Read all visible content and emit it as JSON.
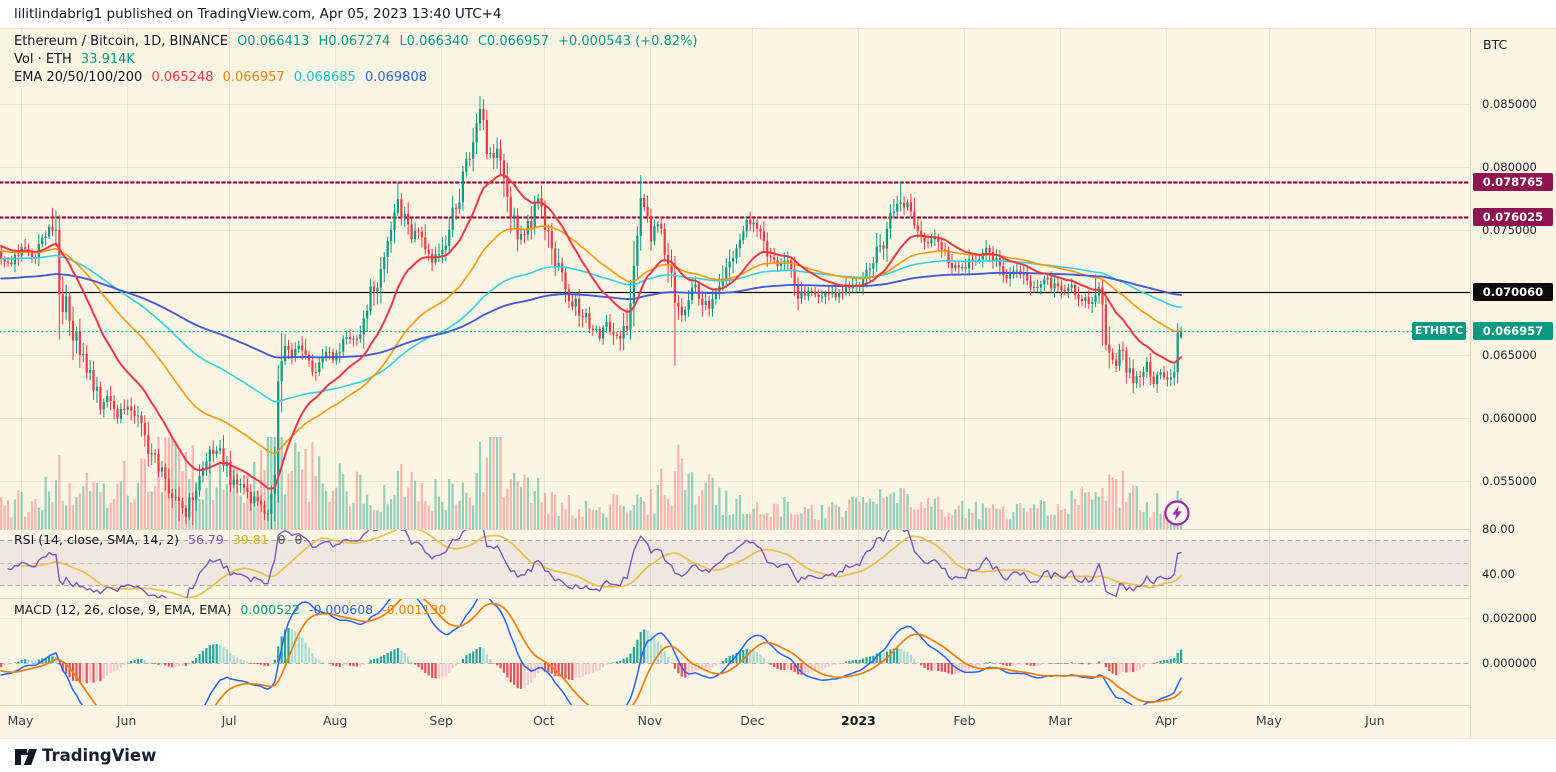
{
  "header": {
    "publish_info": "lilitlindabrig1 published on TradingView.com, Apr 05, 2023 13:40 UTC+4"
  },
  "legend": {
    "line1": {
      "symbol": "Ethereum / Bitcoin, 1D, BINANCE",
      "o": "O0.066413",
      "h": "H0.067274",
      "l": "L0.066340",
      "c": "C0.066957",
      "change": "+0.000543 (+0.82%)"
    },
    "line2": {
      "label": "Vol · ETH",
      "value": "33.914K"
    },
    "line3": {
      "label": "EMA 20/50/100/200",
      "v20": "0.065248",
      "v50": "0.066957",
      "v100": "0.068685",
      "v200": "0.069808"
    },
    "rsi": {
      "label": "RSI (14, close, SMA, 14, 2)",
      "value": "56.79",
      "ma": "39.81",
      "z1": "0",
      "z2": "0"
    },
    "macd": {
      "label": "MACD (12, 26, close, 9, EMA, EMA)",
      "hist": "0.000522",
      "macd": "-0.000608",
      "signal": "-0.001130"
    }
  },
  "price_axis": {
    "title": "BTC",
    "ticks": [
      {
        "label": "0.085000",
        "value": 0.085
      },
      {
        "label": "0.080000",
        "value": 0.08
      },
      {
        "label": "0.075000",
        "value": 0.075
      },
      {
        "label": "0.065000",
        "value": 0.065
      },
      {
        "label": "0.060000",
        "value": 0.06
      },
      {
        "label": "0.055000",
        "value": 0.055
      }
    ],
    "rsi_ticks": [
      {
        "label": "80.00",
        "value": 80
      },
      {
        "label": "40.00",
        "value": 40
      }
    ],
    "macd_ticks": [
      {
        "label": "0.002000",
        "value": 0.002
      },
      {
        "label": "0.000000",
        "value": 0
      }
    ]
  },
  "time_axis": {
    "months": [
      {
        "label": "May",
        "t": 6
      },
      {
        "label": "Jun",
        "t": 37
      },
      {
        "label": "Jul",
        "t": 67
      },
      {
        "label": "Aug",
        "t": 98
      },
      {
        "label": "Sep",
        "t": 129
      },
      {
        "label": "Oct",
        "t": 159
      },
      {
        "label": "Nov",
        "t": 190
      },
      {
        "label": "Dec",
        "t": 220
      },
      {
        "label": "2023",
        "t": 251,
        "bold": true
      },
      {
        "label": "Feb",
        "t": 282
      },
      {
        "label": "Mar",
        "t": 310
      },
      {
        "label": "Apr",
        "t": 341
      },
      {
        "label": "May",
        "t": 371
      },
      {
        "label": "Jun",
        "t": 402
      }
    ]
  },
  "footer": {
    "brand": "TradingView"
  },
  "chart_data": {
    "type": "candlestick",
    "symbol": "ETHBTC",
    "pair": "Ethereum / Bitcoin",
    "exchange": "BINANCE",
    "interval": "1D",
    "quote_currency": "BTC",
    "last_candle": {
      "open": 0.066413,
      "high": 0.067274,
      "low": 0.06634,
      "close": 0.066957,
      "change": "+0.000543",
      "change_pct": "+0.82%"
    },
    "last_volume_eth": "33.914K",
    "visible_price_range": [
      0.0512,
      0.091
    ],
    "ema_periods": [
      20,
      50,
      100,
      200
    ],
    "ema_last": [
      0.065248,
      0.066957,
      0.068685,
      0.069808
    ],
    "ema_seeds": [
      0.0737,
      0.0733,
      0.0727,
      0.0711
    ],
    "rsi_params": {
      "length": 14,
      "smoothing": "SMA",
      "smoothing_length": 14,
      "last": 56.79,
      "ma_last": 39.81,
      "bands": [
        70,
        50,
        30
      ]
    },
    "macd_params": {
      "fast": 12,
      "slow": 26,
      "signal": 9,
      "hist_last": 0.000522,
      "macd_last": -0.000608,
      "signal_last": -0.00113
    },
    "levels": [
      {
        "price": 0.078765,
        "label": "0.078765",
        "style": "dotted",
        "line": "#8F1350",
        "badge_bg": "#8F1350"
      },
      {
        "price": 0.076025,
        "label": "0.076025",
        "style": "dotted",
        "line": "#8F1350",
        "badge_bg": "#8F1350"
      },
      {
        "price": 0.07006,
        "label": "0.070060",
        "style": "solid",
        "line": "#0C0C0C",
        "badge_bg": "#0C0C0C"
      },
      {
        "price": 0.066957,
        "label": "0.066957",
        "style": "dotted-fine",
        "line": "#089981",
        "badge_bg": "#089981",
        "tag": "ETHBTC"
      }
    ],
    "price_keyframes": [
      [
        0,
        0.0729
      ],
      [
        3,
        0.0722
      ],
      [
        6,
        0.0738
      ],
      [
        9,
        0.0728
      ],
      [
        12,
        0.0742
      ],
      [
        15,
        0.0753
      ],
      [
        16,
        0.0748
      ],
      [
        17,
        0.0692
      ],
      [
        19,
        0.07
      ],
      [
        21,
        0.067
      ],
      [
        23,
        0.0648
      ],
      [
        25,
        0.064
      ],
      [
        27,
        0.0628
      ],
      [
        29,
        0.061
      ],
      [
        31,
        0.0618
      ],
      [
        34,
        0.06
      ],
      [
        37,
        0.0612
      ],
      [
        39,
        0.0605
      ],
      [
        41,
        0.059
      ],
      [
        44,
        0.0572
      ],
      [
        47,
        0.0555
      ],
      [
        50,
        0.0542
      ],
      [
        52,
        0.0532
      ],
      [
        54,
        0.0525
      ],
      [
        56,
        0.0538
      ],
      [
        58,
        0.0552
      ],
      [
        61,
        0.0572
      ],
      [
        63,
        0.0578
      ],
      [
        65,
        0.0565
      ],
      [
        67,
        0.0553
      ],
      [
        69,
        0.0548
      ],
      [
        71,
        0.0545
      ],
      [
        73,
        0.0538
      ],
      [
        75,
        0.0532
      ],
      [
        77,
        0.0526
      ],
      [
        79,
        0.0534
      ],
      [
        80,
        0.0545
      ],
      [
        81,
        0.063
      ],
      [
        83,
        0.0655
      ],
      [
        85,
        0.0648
      ],
      [
        87,
        0.066
      ],
      [
        89,
        0.0649
      ],
      [
        91,
        0.0635
      ],
      [
        93,
        0.0646
      ],
      [
        95,
        0.0655
      ],
      [
        97,
        0.0648
      ],
      [
        99,
        0.0656
      ],
      [
        101,
        0.0668
      ],
      [
        103,
        0.066
      ],
      [
        105,
        0.0674
      ],
      [
        107,
        0.069
      ],
      [
        109,
        0.0704
      ],
      [
        111,
        0.072
      ],
      [
        113,
        0.0738
      ],
      [
        115,
        0.0756
      ],
      [
        116,
        0.077
      ],
      [
        118,
        0.0757
      ],
      [
        120,
        0.0741
      ],
      [
        122,
        0.0752
      ],
      [
        124,
        0.0738
      ],
      [
        126,
        0.0726
      ],
      [
        128,
        0.0733
      ],
      [
        130,
        0.0744
      ],
      [
        132,
        0.076
      ],
      [
        134,
        0.0776
      ],
      [
        136,
        0.0795
      ],
      [
        138,
        0.082
      ],
      [
        140,
        0.0845
      ],
      [
        141,
        0.083
      ],
      [
        143,
        0.0806
      ],
      [
        145,
        0.0818
      ],
      [
        147,
        0.0791
      ],
      [
        149,
        0.0769
      ],
      [
        151,
        0.0749
      ],
      [
        153,
        0.0743
      ],
      [
        155,
        0.0761
      ],
      [
        157,
        0.0777
      ],
      [
        159,
        0.0759
      ],
      [
        161,
        0.0738
      ],
      [
        163,
        0.0718
      ],
      [
        165,
        0.0703
      ],
      [
        167,
        0.0694
      ],
      [
        169,
        0.0687
      ],
      [
        171,
        0.0679
      ],
      [
        173,
        0.0671
      ],
      [
        175,
        0.0666
      ],
      [
        177,
        0.0674
      ],
      [
        179,
        0.0666
      ],
      [
        181,
        0.0661
      ],
      [
        183,
        0.0676
      ],
      [
        185,
        0.0715
      ],
      [
        186,
        0.0752
      ],
      [
        187,
        0.0775
      ],
      [
        188,
        0.0767
      ],
      [
        189,
        0.0757
      ],
      [
        190,
        0.0746
      ],
      [
        192,
        0.0753
      ],
      [
        194,
        0.0736
      ],
      [
        196,
        0.0721
      ],
      [
        197,
        0.0699
      ],
      [
        199,
        0.0681
      ],
      [
        201,
        0.0694
      ],
      [
        203,
        0.0705
      ],
      [
        205,
        0.0693
      ],
      [
        207,
        0.0686
      ],
      [
        209,
        0.0695
      ],
      [
        211,
        0.0704
      ],
      [
        213,
        0.072
      ],
      [
        215,
        0.0736
      ],
      [
        217,
        0.075
      ],
      [
        219,
        0.0757
      ],
      [
        221,
        0.0747
      ],
      [
        223,
        0.0737
      ],
      [
        225,
        0.0729
      ],
      [
        227,
        0.0721
      ],
      [
        229,
        0.0727
      ],
      [
        231,
        0.0717
      ],
      [
        233,
        0.0699
      ],
      [
        235,
        0.0697
      ],
      [
        237,
        0.0702
      ],
      [
        239,
        0.0697
      ],
      [
        241,
        0.0702
      ],
      [
        243,
        0.0698
      ],
      [
        245,
        0.0701
      ],
      [
        247,
        0.0704
      ],
      [
        249,
        0.0707
      ],
      [
        251,
        0.0709
      ],
      [
        253,
        0.0715
      ],
      [
        255,
        0.0722
      ],
      [
        257,
        0.0735
      ],
      [
        259,
        0.0752
      ],
      [
        261,
        0.0765
      ],
      [
        263,
        0.0772
      ],
      [
        265,
        0.0769
      ],
      [
        267,
        0.0757
      ],
      [
        269,
        0.0742
      ],
      [
        271,
        0.0737
      ],
      [
        273,
        0.0742
      ],
      [
        275,
        0.0734
      ],
      [
        277,
        0.0727
      ],
      [
        279,
        0.0721
      ],
      [
        281,
        0.0717
      ],
      [
        283,
        0.0722
      ],
      [
        285,
        0.0728
      ],
      [
        288,
        0.0734
      ],
      [
        291,
        0.0723
      ],
      [
        294,
        0.0713
      ],
      [
        297,
        0.0719
      ],
      [
        300,
        0.071
      ],
      [
        303,
        0.0704
      ],
      [
        306,
        0.071
      ],
      [
        308,
        0.0703
      ],
      [
        310,
        0.0701
      ],
      [
        312,
        0.0706
      ],
      [
        314,
        0.07
      ],
      [
        316,
        0.0697
      ],
      [
        318,
        0.0693
      ],
      [
        320,
        0.07
      ],
      [
        321,
        0.0704
      ],
      [
        322,
        0.0692
      ],
      [
        323,
        0.0668
      ],
      [
        324,
        0.0656
      ],
      [
        325,
        0.0648
      ],
      [
        326,
        0.0643
      ],
      [
        327,
        0.0651
      ],
      [
        328,
        0.0656
      ],
      [
        329,
        0.0643
      ],
      [
        330,
        0.0636
      ],
      [
        331,
        0.063
      ],
      [
        332,
        0.0633
      ],
      [
        333,
        0.0629
      ],
      [
        334,
        0.0639
      ],
      [
        335,
        0.0644
      ],
      [
        336,
        0.0636
      ],
      [
        337,
        0.063
      ],
      [
        338,
        0.0635
      ],
      [
        339,
        0.0639
      ],
      [
        340,
        0.0631
      ],
      [
        341,
        0.0628
      ],
      [
        342,
        0.0636
      ],
      [
        343,
        0.0646
      ],
      [
        344,
        0.0664
      ],
      [
        345,
        0.066957
      ]
    ],
    "wick_overrides": [
      {
        "t": 15,
        "high": 0.0767
      },
      {
        "t": 17,
        "low": 0.0663
      },
      {
        "t": 52,
        "low": 0.0518
      },
      {
        "t": 56,
        "low": 0.0515
      },
      {
        "t": 79,
        "low": 0.0512
      },
      {
        "t": 116,
        "high": 0.0788
      },
      {
        "t": 140,
        "high": 0.0856
      },
      {
        "t": 181,
        "low": 0.0654
      },
      {
        "t": 187,
        "high": 0.0793
      },
      {
        "t": 197,
        "low": 0.0642
      },
      {
        "t": 219,
        "high": 0.0764
      },
      {
        "t": 233,
        "low": 0.0687
      },
      {
        "t": 263,
        "high": 0.0788
      },
      {
        "t": 320,
        "high": 0.0714
      },
      {
        "t": 322,
        "low": 0.0658
      },
      {
        "t": 331,
        "low": 0.062
      },
      {
        "t": 345,
        "high": 0.067274,
        "low": 0.06634
      }
    ],
    "volume_keyframes": [
      [
        0,
        26
      ],
      [
        10,
        30
      ],
      [
        15,
        42
      ],
      [
        17,
        68
      ],
      [
        22,
        40
      ],
      [
        30,
        38
      ],
      [
        40,
        55
      ],
      [
        48,
        70
      ],
      [
        52,
        82
      ],
      [
        57,
        60
      ],
      [
        62,
        50
      ],
      [
        70,
        46
      ],
      [
        76,
        55
      ],
      [
        80,
        88
      ],
      [
        84,
        75
      ],
      [
        90,
        68
      ],
      [
        96,
        50
      ],
      [
        102,
        42
      ],
      [
        108,
        38
      ],
      [
        116,
        50
      ],
      [
        122,
        35
      ],
      [
        130,
        38
      ],
      [
        136,
        45
      ],
      [
        140,
        62
      ],
      [
        144,
        95
      ],
      [
        148,
        55
      ],
      [
        154,
        40
      ],
      [
        160,
        32
      ],
      [
        166,
        26
      ],
      [
        172,
        22
      ],
      [
        178,
        24
      ],
      [
        184,
        26
      ],
      [
        190,
        30
      ],
      [
        194,
        48
      ],
      [
        197,
        60
      ],
      [
        200,
        78
      ],
      [
        204,
        45
      ],
      [
        210,
        32
      ],
      [
        216,
        26
      ],
      [
        222,
        22
      ],
      [
        228,
        24
      ],
      [
        234,
        20
      ],
      [
        240,
        18
      ],
      [
        246,
        20
      ],
      [
        251,
        24
      ],
      [
        256,
        28
      ],
      [
        261,
        34
      ],
      [
        266,
        28
      ],
      [
        272,
        24
      ],
      [
        278,
        20
      ],
      [
        284,
        22
      ],
      [
        290,
        20
      ],
      [
        296,
        18
      ],
      [
        302,
        20
      ],
      [
        308,
        22
      ],
      [
        312,
        26
      ],
      [
        316,
        40
      ],
      [
        320,
        35
      ],
      [
        326,
        48
      ],
      [
        330,
        38
      ],
      [
        334,
        32
      ],
      [
        338,
        26
      ],
      [
        342,
        28
      ],
      [
        345,
        34
      ]
    ],
    "colors": {
      "background": "#FBF6E4",
      "up": "#0A9981",
      "down": "#F23645",
      "volume_up": "rgba(8,153,129,0.42)",
      "volume_down": "rgba(242,54,69,0.34)",
      "ema20": "#F23645",
      "ema50": "#FF9800",
      "ema100": "#38CFE3",
      "ema200": "#4A5ACF",
      "rsi": "#7E57C2",
      "rsi_ma": "#E9C14E",
      "macd_line": "#2962FF",
      "macd_signal": "#F57C00",
      "hist_up": "#26A69A",
      "hist_up_weak": "#A8DCD2",
      "hist_down": "#EA4E59",
      "hist_down_weak": "#F6C9CC"
    }
  }
}
